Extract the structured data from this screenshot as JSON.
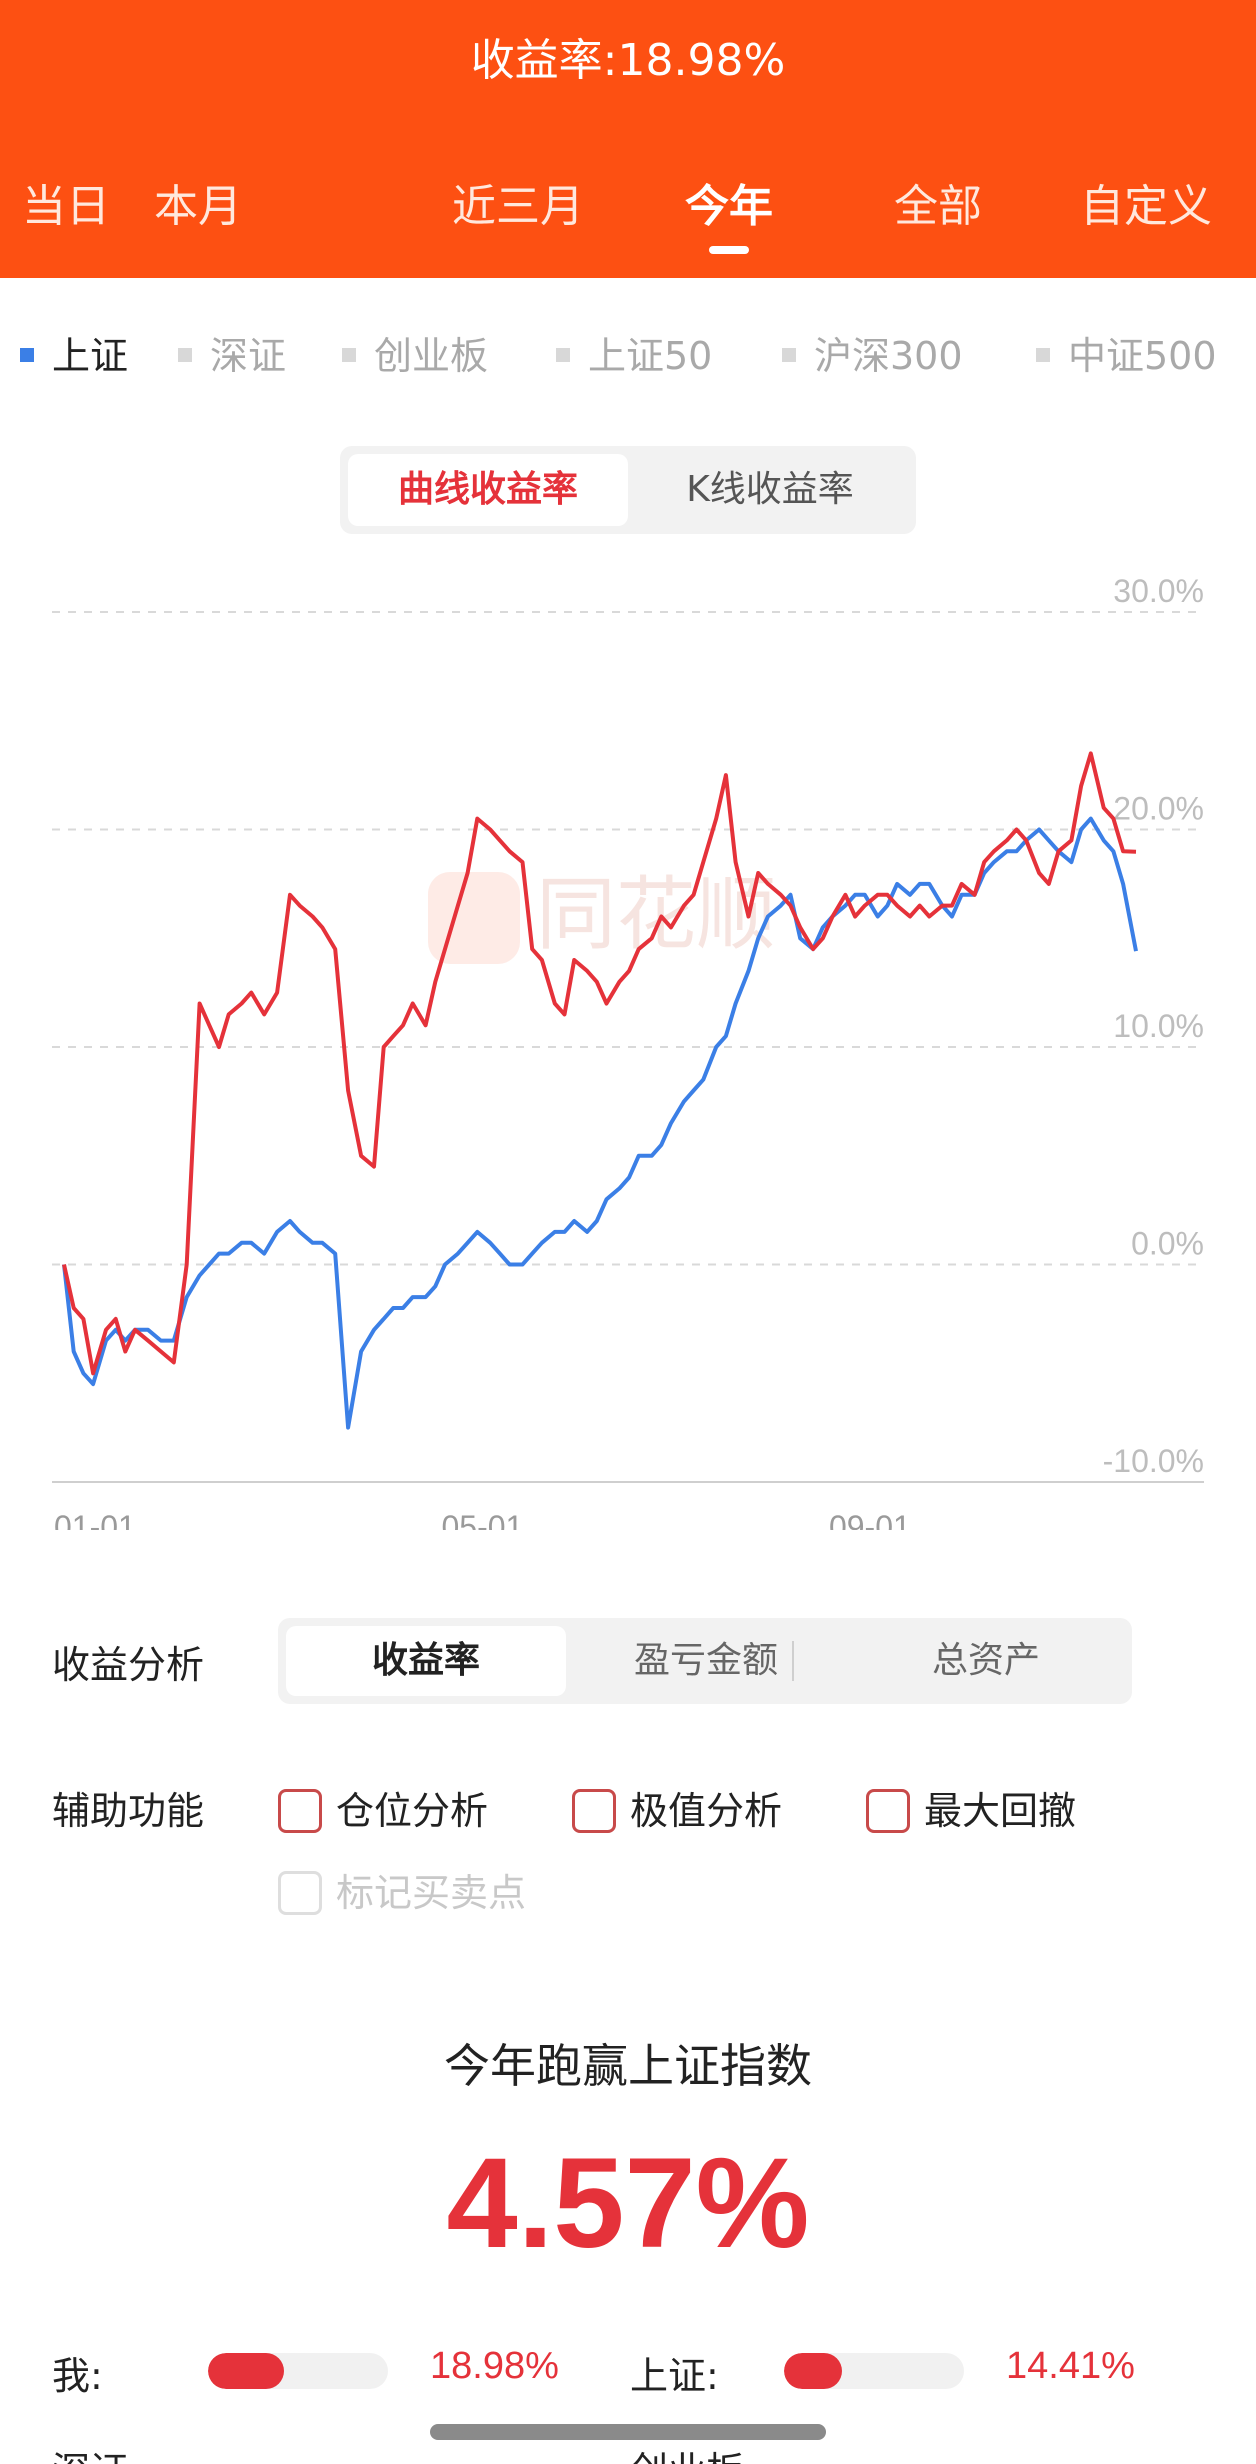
{
  "header": {
    "title": "收益率:18.98%",
    "accent": "#fd5012"
  },
  "period_tabs": [
    {
      "label": "当日",
      "active": false
    },
    {
      "label": "本月",
      "active": false
    },
    {
      "label": "近三月",
      "active": false
    },
    {
      "label": "今年",
      "active": true
    },
    {
      "label": "全部",
      "active": false
    },
    {
      "label": "自定义",
      "active": false
    }
  ],
  "index_tabs": [
    {
      "label": "上证",
      "active": true
    },
    {
      "label": "深证",
      "active": false
    },
    {
      "label": "创业板",
      "active": false
    },
    {
      "label": "上证50",
      "active": false
    },
    {
      "label": "沪深300",
      "active": false
    },
    {
      "label": "中证500",
      "active": false
    }
  ],
  "mode_toggle": {
    "curve": "曲线收益率",
    "kline": "K线收益率",
    "active": "curve"
  },
  "chart_data": {
    "type": "line",
    "ylim": [
      -10,
      30
    ],
    "y_ticks": [
      "30.0%",
      "20.0%",
      "10.0%",
      "0.0%",
      "-10.0%"
    ],
    "x_ticks": [
      "01-01",
      "05-01",
      "09-01"
    ],
    "watermark": "同花顺",
    "grid": true,
    "series": [
      {
        "color": "#e5323a",
        "x": [
          0,
          3,
          6,
          9,
          13,
          16,
          19,
          22,
          26,
          30,
          34,
          38,
          42,
          45,
          48,
          51,
          55,
          58,
          62,
          66,
          70,
          73,
          77,
          80,
          84,
          88,
          92,
          96,
          99,
          102,
          105,
          108,
          112,
          115,
          118,
          122,
          125,
          128,
          132,
          135,
          138,
          142,
          145,
          148,
          152,
          155,
          158,
          162,
          165,
          168,
          172,
          175,
          178,
          182,
          185,
          188,
          192,
          195,
          198,
          202,
          205,
          208,
          212,
          215,
          218,
          222,
          225,
          228,
          232,
          235,
          238,
          242,
          245,
          248,
          252,
          255,
          258,
          262,
          265,
          268,
          272,
          275,
          278,
          282,
          285,
          288,
          292,
          295,
          298,
          302,
          305,
          308,
          312,
          315,
          318,
          322,
          325,
          328,
          332
        ],
        "values": [
          0,
          -2,
          -2.5,
          -5,
          -3,
          -2.5,
          -4,
          -3,
          -3.5,
          -4,
          -4.5,
          0,
          12,
          11,
          10,
          11.5,
          12,
          12.5,
          11.5,
          12.5,
          17,
          16.5,
          16,
          15.5,
          14.5,
          8,
          5,
          4.5,
          10,
          10.5,
          11,
          12,
          11,
          13,
          14.5,
          16.5,
          18,
          20.5,
          20,
          19.5,
          19,
          18.5,
          14.5,
          14,
          12,
          11.5,
          14,
          13.5,
          13,
          12,
          13,
          13.5,
          14.5,
          15,
          16,
          15.5,
          16.5,
          17,
          18.5,
          20.5,
          22.5,
          18.5,
          16,
          18,
          17.5,
          17,
          16.5,
          15.5,
          14.5,
          15,
          16,
          17,
          16,
          16.5,
          17,
          17,
          16.5,
          16,
          16.5,
          16,
          16.5,
          16.5,
          17.5,
          17,
          18.5,
          19,
          19.5,
          20,
          19.5,
          18,
          17.5,
          19,
          19.5,
          22,
          23.5,
          21,
          20.5,
          19,
          18.98
        ]
      },
      {
        "color": "#3b7fe6",
        "x": [
          0,
          3,
          6,
          9,
          13,
          16,
          19,
          22,
          26,
          30,
          34,
          38,
          42,
          45,
          48,
          51,
          55,
          58,
          62,
          66,
          70,
          73,
          77,
          80,
          84,
          88,
          92,
          96,
          99,
          102,
          105,
          108,
          112,
          115,
          118,
          122,
          125,
          128,
          132,
          135,
          138,
          142,
          145,
          148,
          152,
          155,
          158,
          162,
          165,
          168,
          172,
          175,
          178,
          182,
          185,
          188,
          192,
          195,
          198,
          202,
          205,
          208,
          212,
          215,
          218,
          222,
          225,
          228,
          232,
          235,
          238,
          242,
          245,
          248,
          252,
          255,
          258,
          262,
          265,
          268,
          272,
          275,
          278,
          282,
          285,
          288,
          292,
          295,
          298,
          302,
          305,
          308,
          312,
          315,
          318,
          322,
          325,
          328,
          332
        ],
        "values": [
          0,
          -4,
          -5,
          -5.5,
          -3.5,
          -3,
          -3.5,
          -3,
          -3,
          -3.5,
          -3.5,
          -1.5,
          -0.5,
          0,
          0.5,
          0.5,
          1,
          1,
          0.5,
          1.5,
          2,
          1.5,
          1,
          1,
          0.5,
          -7.5,
          -4,
          -3,
          -2.5,
          -2,
          -2,
          -1.5,
          -1.5,
          -1,
          0,
          0.5,
          1,
          1.5,
          1,
          0.5,
          0,
          0,
          0.5,
          1,
          1.5,
          1.5,
          2,
          1.5,
          2,
          3,
          3.5,
          4,
          5,
          5,
          5.5,
          6.5,
          7.5,
          8,
          8.5,
          10,
          10.5,
          12,
          13.5,
          15,
          16,
          16.5,
          17,
          15,
          14.5,
          15.5,
          16,
          16.5,
          17,
          17,
          16,
          16.5,
          17.5,
          17,
          17.5,
          17.5,
          16.5,
          16,
          17,
          17,
          18,
          18.5,
          19,
          19,
          19.5,
          20,
          19.5,
          19,
          18.5,
          20,
          20.5,
          19.5,
          19,
          17.5,
          14.41
        ]
      }
    ]
  },
  "analysis": {
    "label": "收益分析",
    "options": [
      "收益率",
      "盈亏金额",
      "总资产"
    ],
    "active": 0
  },
  "aux": {
    "label": "辅助功能",
    "options": [
      {
        "label": "仓位分析",
        "checked": false,
        "disabled": false
      },
      {
        "label": "极值分析",
        "checked": false,
        "disabled": false
      },
      {
        "label": "最大回撤",
        "checked": false,
        "disabled": false
      },
      {
        "label": "标记买卖点",
        "checked": false,
        "disabled": true
      }
    ]
  },
  "summary": {
    "title": "今年跑赢上证指数",
    "value": "4.57%"
  },
  "compare": [
    {
      "label": "我:",
      "value": "18.98%",
      "fill": 0.42
    },
    {
      "label": "上证:",
      "value": "14.41%",
      "fill": 0.32
    }
  ],
  "compare_partial": [
    {
      "label": "深证"
    },
    {
      "label": "创业板"
    }
  ]
}
